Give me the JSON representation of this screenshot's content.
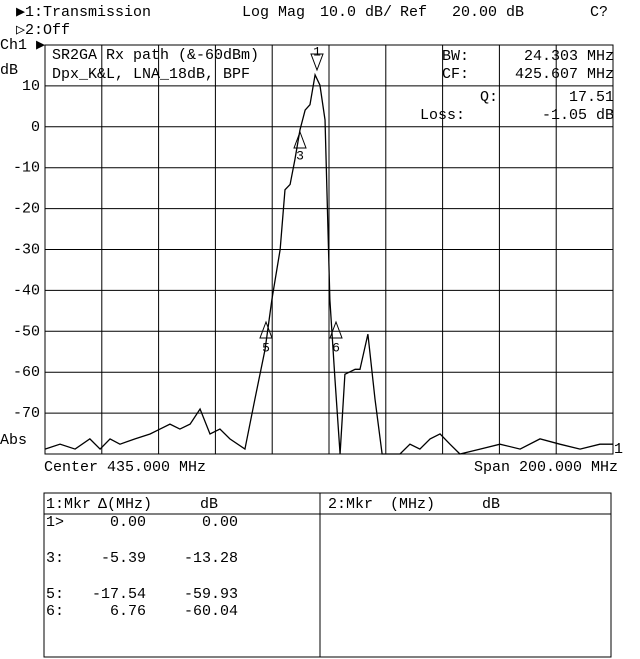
{
  "header": {
    "channel1": "▶1:Transmission",
    "format": "Log Mag",
    "scale": "10.0 dB/",
    "ref_label": "Ref",
    "ref_value": "20.00 dB",
    "status": "C?",
    "channel2": "▷2:Off"
  },
  "chart_data": {
    "type": "line",
    "channel_label": "Ch1 ▶",
    "y_unit": "dB",
    "y_mode": "Abs",
    "trace_number": "1",
    "annotations": [
      "SR2GA Rx path (&-60dBm)",
      "Dpx_K&L, LNA_18dB, BPF"
    ],
    "stats": [
      {
        "name": "BW:",
        "value": "24.303 MHz"
      },
      {
        "name": "CF:",
        "value": "425.607 MHz"
      },
      {
        "name": "Q:",
        "value": "17.51"
      },
      {
        "name": "Loss:",
        "value": "-1.05 dB"
      }
    ],
    "center_label": "Center 435.000 MHz",
    "span_label": "Span 200.000 MHz",
    "marker_labels": [
      "1",
      "3",
      "5",
      "6"
    ],
    "x": [
      335.0,
      340.3,
      345.6,
      350.8,
      354.4,
      357.9,
      361.4,
      366.7,
      372.0,
      375.5,
      379.0,
      382.5,
      386.1,
      389.6,
      393.1,
      396.6,
      400.1,
      405.4,
      408.9,
      412.5,
      414.9,
      417.8,
      419.5,
      421.3,
      423.0,
      424.8,
      426.6,
      428.3,
      430.1,
      431.8,
      433.6,
      435.3,
      437.1,
      438.9,
      440.6,
      444.2,
      445.9,
      448.7,
      451.2,
      453.7,
      460.0,
      463.5,
      467.0,
      470.6,
      474.1,
      477.6,
      481.1,
      488.2,
      495.2,
      502.3,
      509.3,
      516.3,
      523.4,
      530.4,
      535.0
    ],
    "series": [
      {
        "color": "#000000",
        "values": [
          -78.8,
          -77.6,
          -78.8,
          -76.3,
          -78.8,
          -76.3,
          -77.6,
          -76.3,
          -75.1,
          -73.9,
          -72.7,
          -73.9,
          -72.7,
          -69.0,
          -75.1,
          -73.9,
          -76.3,
          -78.8,
          -66.6,
          -54.4,
          -42.2,
          -30.0,
          -15.4,
          -14.1,
          -8.0,
          -0.7,
          4.1,
          5.4,
          12.7,
          10.2,
          1.7,
          -42.2,
          -61.7,
          -80.0,
          -60.5,
          -59.3,
          -59.3,
          -50.7,
          -66.6,
          -80.0,
          -80.0,
          -77.6,
          -78.8,
          -76.3,
          -75.1,
          -77.6,
          -80.0,
          -78.8,
          -77.6,
          -78.8,
          -76.3,
          -77.6,
          -78.8,
          -77.6,
          -77.6
        ]
      }
    ],
    "xlim": [
      335,
      535
    ],
    "xticks": [
      335,
      355,
      375,
      395,
      415,
      435,
      455,
      475,
      495,
      515,
      535
    ],
    "ylim": [
      -80,
      20
    ],
    "yticks": [
      10,
      0,
      -10,
      -20,
      -30,
      -40,
      -50,
      -60,
      -70
    ],
    "grid": true
  },
  "table": {
    "left_header": [
      "1:Mkr",
      "Δ(MHz)",
      "dB"
    ],
    "right_header": [
      "2:Mkr",
      "(MHz)",
      "dB"
    ],
    "rows": [
      [
        "1>",
        "0.00",
        "0.00"
      ],
      [
        "3:",
        "-5.39",
        "-13.28"
      ],
      [
        "5:",
        "-17.54",
        "-59.93"
      ],
      [
        "6:",
        "6.76",
        "-60.04"
      ]
    ]
  }
}
